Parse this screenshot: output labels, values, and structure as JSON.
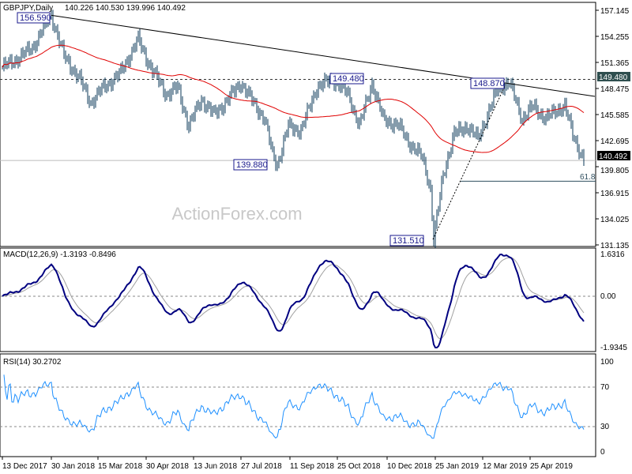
{
  "header": {
    "symbol_tf": "GBPJPY,Daily",
    "ohlc": "140.226 140.530 139.996 140.492"
  },
  "watermark": "ActionForex.com",
  "price_axis": [
    "157.145",
    "154.255",
    "151.365",
    "148.475",
    "145.585",
    "142.695",
    "139.805",
    "136.915",
    "134.025",
    "131.135"
  ],
  "current_price": "140.492",
  "resistance_tag": "149.480",
  "fib_label": "61.8",
  "annotations": {
    "high1": "156.590",
    "high2": "149.480",
    "low1": "139.880",
    "low2": "131.510",
    "high3": "148.870"
  },
  "macd": {
    "title": "MACD(12,26,9) -1.3193 -0.8496",
    "axis": [
      "1.6316",
      "0.00",
      "-1.9345"
    ]
  },
  "rsi": {
    "title": "RSI(14) 30.2702",
    "axis": [
      "100",
      "70",
      "30",
      "0"
    ]
  },
  "dates": [
    "13 Dec 2017",
    "30 Jan 2018",
    "15 Mar 2018",
    "30 Apr 2018",
    "13 Jun 2018",
    "27 Jul 2018",
    "11 Sep 2018",
    "25 Oct 2018",
    "10 Dec 2018",
    "25 Jan 2019",
    "12 Mar 2019",
    "25 Apr 2019"
  ],
  "colors": {
    "bars": "#0b3a5a",
    "ma": "#e00000",
    "macd": "#000080",
    "signal": "#a0a0a0"
  },
  "chart_data": {
    "type": "line",
    "title": "GBPJPY Daily",
    "ylim": [
      131.135,
      157.145
    ],
    "anchors": [
      [
        0,
        150.8
      ],
      [
        9,
        151.7
      ],
      [
        19,
        153
      ],
      [
        31,
        156.6
      ],
      [
        39,
        152.1
      ],
      [
        49,
        149.5
      ],
      [
        56,
        146.9
      ],
      [
        64,
        148.6
      ],
      [
        74,
        150
      ],
      [
        86,
        153.9
      ],
      [
        94,
        150.8
      ],
      [
        104,
        147.8
      ],
      [
        111,
        148.6
      ],
      [
        118,
        144.3
      ],
      [
        126,
        147.3
      ],
      [
        134,
        145.6
      ],
      [
        141,
        146.9
      ],
      [
        151,
        149.1
      ],
      [
        159,
        146.9
      ],
      [
        166,
        145.1
      ],
      [
        171,
        141.2
      ],
      [
        174,
        140.0
      ],
      [
        181,
        144.3
      ],
      [
        189,
        143.8
      ],
      [
        199,
        148.6
      ],
      [
        209,
        149.5
      ],
      [
        219,
        147.8
      ],
      [
        226,
        144.3
      ],
      [
        234,
        149.1
      ],
      [
        241,
        145.1
      ],
      [
        251,
        144.3
      ],
      [
        259,
        142.1
      ],
      [
        266,
        140.8
      ],
      [
        271,
        137.3
      ],
      [
        273,
        131.6
      ],
      [
        279,
        139
      ],
      [
        286,
        143.4
      ],
      [
        294,
        144.3
      ],
      [
        301,
        142.9
      ],
      [
        306,
        145.1
      ],
      [
        314,
        148.6
      ],
      [
        321,
        149.1
      ],
      [
        329,
        145.1
      ],
      [
        336,
        146.5
      ],
      [
        344,
        145.1
      ],
      [
        351,
        146.1
      ],
      [
        356,
        146.5
      ],
      [
        361,
        143.4
      ],
      [
        368,
        140.5
      ]
    ],
    "levels": {
      "resistance": 149.48,
      "current": 140.492,
      "fib_61_8": 138.2
    },
    "trendline": [
      [
        31,
        156.59
      ],
      [
        375,
        147.6
      ]
    ]
  }
}
